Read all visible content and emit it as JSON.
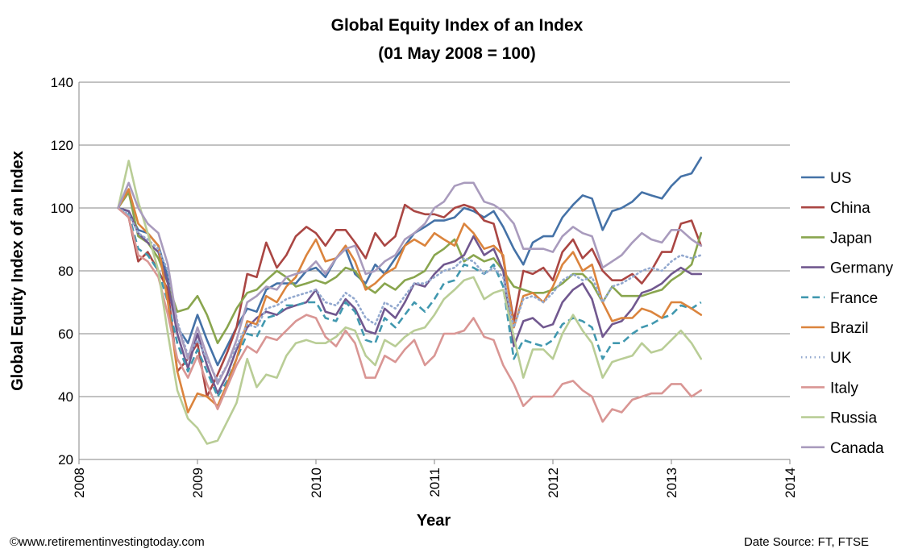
{
  "footer": {
    "left": "©www.retirementinvestingtoday.com",
    "right": "Date Source: FT,  FTSE"
  },
  "chart_data": {
    "type": "line",
    "title": "Global Equity Index of an Index",
    "subtitle": "(01 May 2008 = 100)",
    "xlabel": "Year",
    "ylabel": "Global Equity Index of an Index",
    "xlim": [
      2008,
      2014
    ],
    "ylim": [
      20,
      140
    ],
    "xticks": [
      2008,
      2009,
      2010,
      2011,
      2012,
      2013,
      2014
    ],
    "yticks": [
      20,
      40,
      60,
      80,
      100,
      120,
      140
    ],
    "grid": "horizontal",
    "legend_position": "right",
    "x": [
      2008.33,
      2008.42,
      2008.5,
      2008.58,
      2008.67,
      2008.75,
      2008.83,
      2008.92,
      2009.0,
      2009.08,
      2009.17,
      2009.25,
      2009.33,
      2009.42,
      2009.5,
      2009.58,
      2009.67,
      2009.75,
      2009.83,
      2009.92,
      2010.0,
      2010.08,
      2010.17,
      2010.25,
      2010.33,
      2010.42,
      2010.5,
      2010.58,
      2010.67,
      2010.75,
      2010.83,
      2010.92,
      2011.0,
      2011.08,
      2011.17,
      2011.25,
      2011.33,
      2011.42,
      2011.5,
      2011.58,
      2011.67,
      2011.75,
      2011.83,
      2011.92,
      2012.0,
      2012.08,
      2012.17,
      2012.25,
      2012.33,
      2012.42,
      2012.5,
      2012.58,
      2012.67,
      2012.75,
      2012.83,
      2012.92,
      2013.0,
      2013.08,
      2013.17,
      2013.25
    ],
    "series": [
      {
        "name": "US",
        "color": "#4572A7",
        "dash": "solid",
        "values": [
          100,
          99,
          93,
          92,
          88,
          78,
          62,
          57,
          66,
          58,
          50,
          56,
          62,
          68,
          67,
          74,
          76,
          76,
          76,
          80,
          81,
          78,
          84,
          87,
          79,
          76,
          82,
          79,
          84,
          88,
          92,
          94,
          96,
          96,
          97,
          100,
          99,
          97,
          99,
          94,
          87,
          82,
          89,
          91,
          91,
          97,
          101,
          104,
          103,
          93,
          99,
          100,
          102,
          105,
          104,
          103,
          107,
          110,
          111,
          116
        ]
      },
      {
        "name": "China",
        "color": "#AA4643",
        "dash": "solid",
        "values": [
          100,
          97,
          83,
          86,
          80,
          74,
          48,
          52,
          57,
          40,
          47,
          54,
          62,
          79,
          78,
          89,
          81,
          85,
          91,
          94,
          92,
          88,
          93,
          93,
          89,
          84,
          92,
          88,
          91,
          101,
          99,
          98,
          98,
          97,
          100,
          101,
          100,
          96,
          95,
          84,
          64,
          80,
          79,
          81,
          77,
          86,
          90,
          84,
          87,
          80,
          77,
          77,
          79,
          76,
          80,
          86,
          86,
          95,
          96,
          88
        ]
      },
      {
        "name": "Japan",
        "color": "#89A54E",
        "dash": "solid",
        "values": [
          100,
          105,
          91,
          89,
          84,
          76,
          67,
          68,
          72,
          66,
          57,
          62,
          68,
          73,
          74,
          77,
          80,
          78,
          75,
          76,
          77,
          76,
          78,
          81,
          80,
          75,
          73,
          76,
          74,
          77,
          78,
          80,
          85,
          87,
          90,
          83,
          85,
          83,
          84,
          80,
          75,
          74,
          73,
          73,
          74,
          76,
          79,
          79,
          76,
          70,
          75,
          72,
          72,
          72,
          73,
          74,
          77,
          79,
          82,
          92
        ]
      },
      {
        "name": "Germany",
        "color": "#71588F",
        "dash": "solid",
        "values": [
          100,
          99,
          92,
          89,
          86,
          76,
          60,
          49,
          60,
          50,
          41,
          47,
          55,
          62,
          65,
          67,
          66,
          68,
          69,
          70,
          74,
          67,
          66,
          71,
          68,
          61,
          60,
          68,
          65,
          70,
          76,
          75,
          79,
          82,
          83,
          85,
          91,
          85,
          87,
          80,
          56,
          64,
          65,
          62,
          63,
          70,
          74,
          76,
          71,
          59,
          63,
          64,
          68,
          73,
          74,
          76,
          79,
          81,
          79,
          79
        ]
      },
      {
        "name": "France",
        "color": "#4198AF",
        "dash": "dashed",
        "values": [
          100,
          98,
          87,
          85,
          80,
          70,
          57,
          48,
          55,
          48,
          40,
          45,
          52,
          60,
          59,
          65,
          66,
          69,
          69,
          70,
          70,
          65,
          64,
          70,
          67,
          58,
          57,
          65,
          62,
          66,
          70,
          67,
          71,
          76,
          77,
          82,
          81,
          79,
          82,
          75,
          52,
          58,
          57,
          56,
          58,
          63,
          65,
          64,
          62,
          52,
          57,
          57,
          60,
          62,
          63,
          65,
          66,
          69,
          68,
          70
        ]
      },
      {
        "name": "Brazil",
        "color": "#DB843D",
        "dash": "solid",
        "values": [
          100,
          106,
          95,
          92,
          88,
          70,
          48,
          35,
          41,
          40,
          37,
          44,
          52,
          64,
          63,
          72,
          70,
          75,
          78,
          85,
          90,
          83,
          84,
          88,
          83,
          74,
          76,
          79,
          81,
          88,
          90,
          88,
          92,
          90,
          88,
          95,
          92,
          87,
          88,
          85,
          62,
          72,
          73,
          70,
          75,
          82,
          86,
          80,
          82,
          70,
          64,
          65,
          65,
          68,
          67,
          65,
          70,
          70,
          68,
          66
        ]
      },
      {
        "name": "UK",
        "color": "#93A9CF",
        "dash": "dotted",
        "values": [
          100,
          98,
          92,
          90,
          87,
          80,
          64,
          53,
          58,
          52,
          45,
          50,
          56,
          63,
          62,
          68,
          69,
          71,
          72,
          73,
          74,
          70,
          69,
          73,
          71,
          65,
          63,
          70,
          68,
          72,
          76,
          76,
          78,
          80,
          81,
          84,
          83,
          79,
          81,
          78,
          62,
          71,
          72,
          70,
          73,
          77,
          79,
          77,
          78,
          70,
          75,
          76,
          78,
          80,
          81,
          80,
          83,
          85,
          84,
          85
        ]
      },
      {
        "name": "Italy",
        "color": "#D99694",
        "dash": "solid",
        "values": [
          100,
          97,
          85,
          83,
          78,
          66,
          52,
          46,
          53,
          44,
          36,
          43,
          50,
          56,
          54,
          59,
          58,
          61,
          64,
          66,
          65,
          59,
          56,
          61,
          57,
          46,
          46,
          53,
          51,
          55,
          58,
          50,
          53,
          60,
          60,
          61,
          65,
          59,
          58,
          50,
          44,
          37,
          40,
          40,
          40,
          44,
          45,
          42,
          40,
          32,
          36,
          35,
          39,
          40,
          41,
          41,
          44,
          44,
          40,
          42
        ]
      },
      {
        "name": "Russia",
        "color": "#B9CD96",
        "dash": "solid",
        "values": [
          100,
          115,
          102,
          92,
          80,
          60,
          42,
          33,
          30,
          25,
          26,
          32,
          38,
          52,
          43,
          47,
          46,
          53,
          57,
          58,
          57,
          57,
          59,
          62,
          61,
          53,
          50,
          58,
          56,
          59,
          61,
          62,
          66,
          71,
          74,
          77,
          78,
          71,
          73,
          74,
          59,
          46,
          55,
          55,
          52,
          60,
          66,
          61,
          57,
          46,
          51,
          52,
          53,
          57,
          54,
          55,
          58,
          61,
          57,
          52
        ]
      },
      {
        "name": "Canada",
        "color": "#A99BBD",
        "dash": "solid",
        "values": [
          100,
          108,
          100,
          95,
          92,
          82,
          63,
          52,
          62,
          53,
          44,
          50,
          58,
          70,
          72,
          75,
          74,
          78,
          79,
          80,
          83,
          79,
          84,
          87,
          88,
          79,
          80,
          83,
          85,
          90,
          92,
          95,
          100,
          102,
          107,
          108,
          108,
          102,
          101,
          99,
          95,
          87,
          87,
          87,
          86,
          91,
          94,
          92,
          91,
          81,
          83,
          85,
          89,
          92,
          90,
          89,
          93,
          93,
          90,
          88
        ]
      }
    ]
  }
}
